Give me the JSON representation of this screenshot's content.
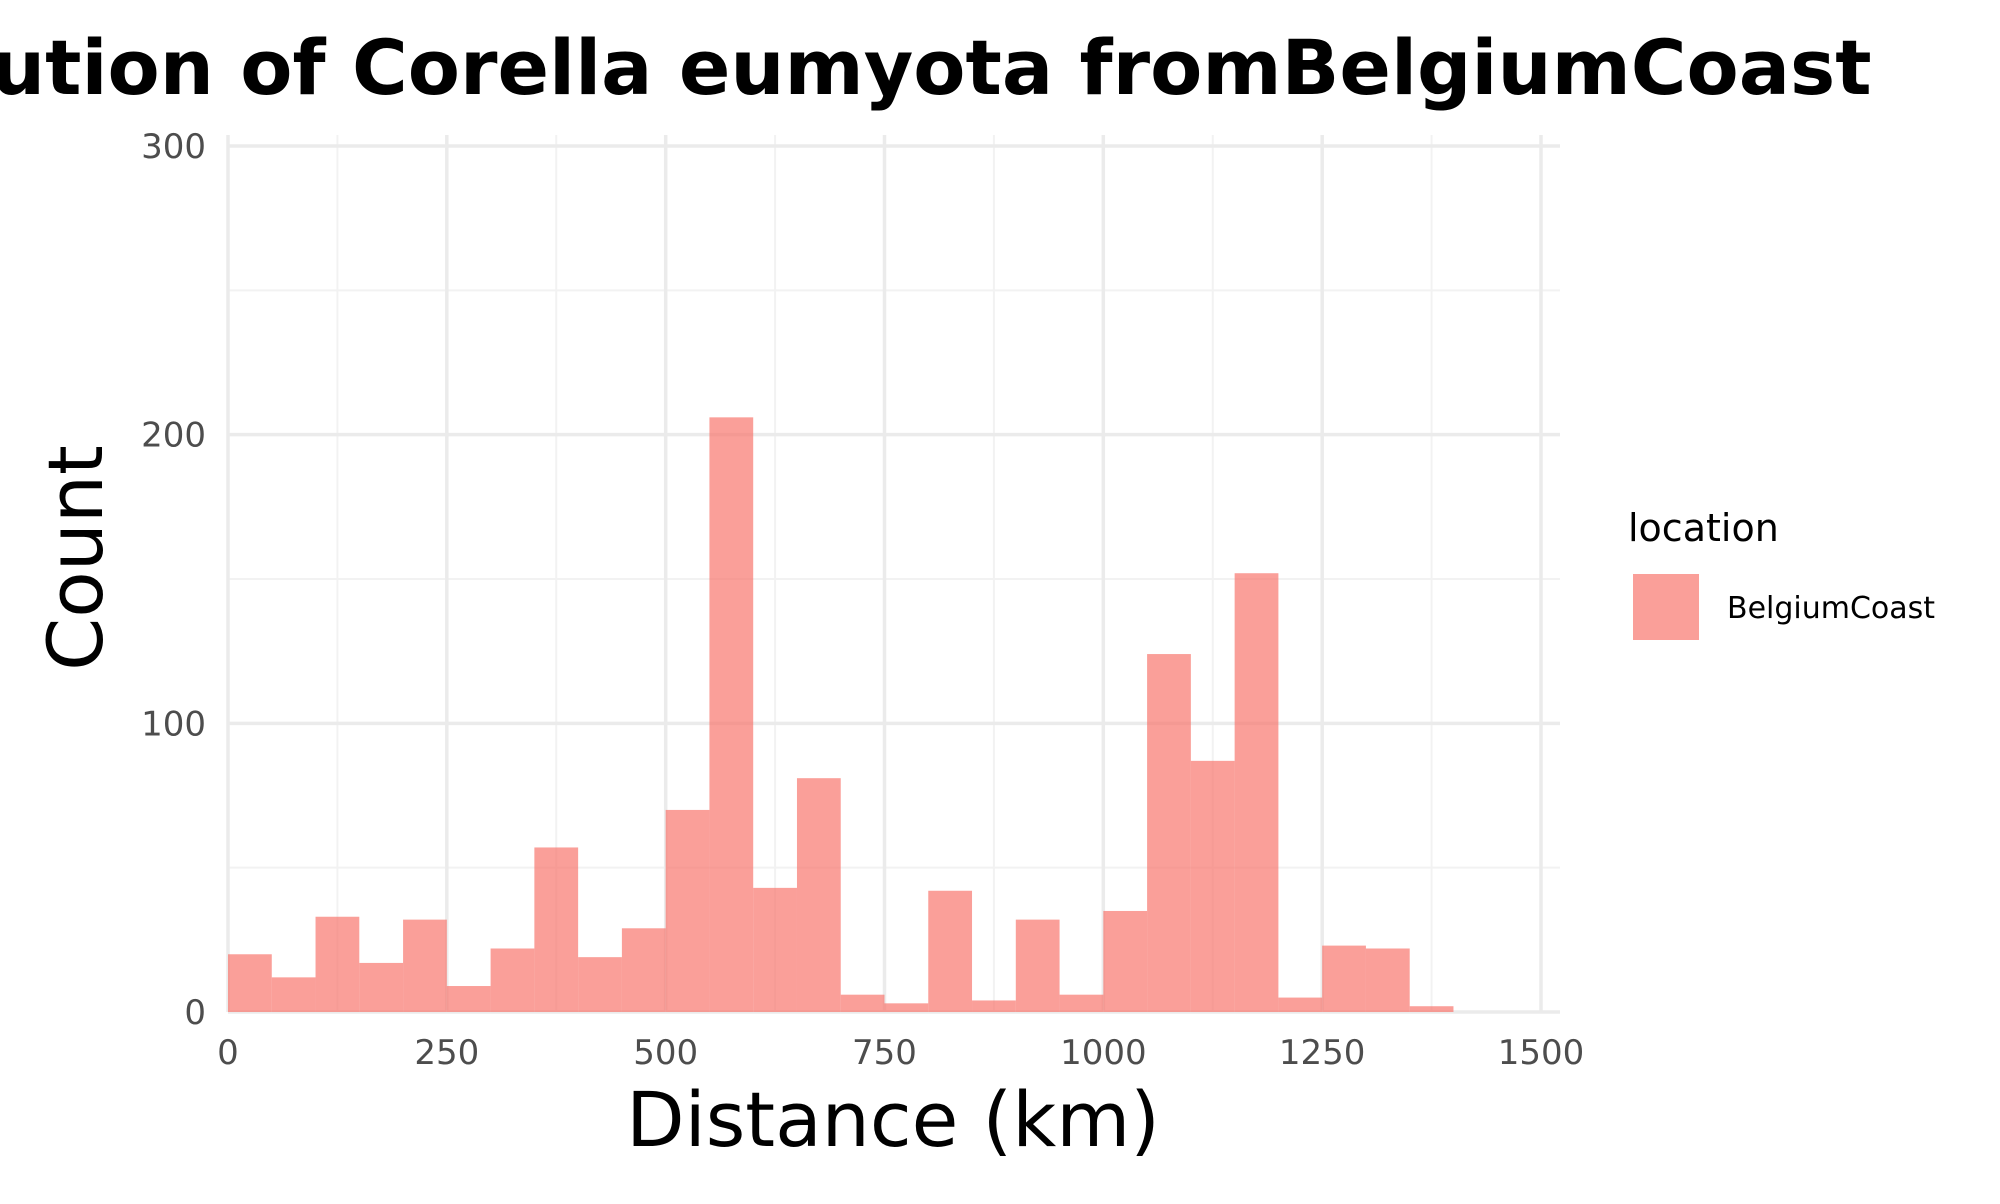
{
  "chart_data": {
    "type": "bar",
    "title": "Distribution of Corella eumyota fromBelgiumCoast",
    "xlabel": "Distance (km)",
    "ylabel": "Count",
    "xlim": [
      0,
      1500
    ],
    "ylim": [
      0,
      300
    ],
    "x_ticks": [
      "0",
      "250",
      "500",
      "750",
      "1000",
      "1250",
      "1500"
    ],
    "x_tick_values": [
      0,
      250,
      500,
      750,
      1000,
      1250,
      1500
    ],
    "y_ticks": [
      "0",
      "100",
      "200",
      "300"
    ],
    "y_tick_values": [
      0,
      100,
      200,
      300
    ],
    "y_minor_values": [
      50,
      150,
      250
    ],
    "x_minor_values": [
      125,
      375,
      625,
      875,
      1125,
      1375
    ],
    "grid": true,
    "legend": {
      "title": "location",
      "position": "right",
      "entries": [
        {
          "label": "BelgiumCoast",
          "color": "#F8766D"
        }
      ]
    },
    "bin_width": 50,
    "series": [
      {
        "name": "BelgiumCoast",
        "color": "#F8766D",
        "bins": [
          {
            "x0": 0,
            "x1": 50,
            "count": 20
          },
          {
            "x0": 50,
            "x1": 100,
            "count": 12
          },
          {
            "x0": 100,
            "x1": 150,
            "count": 33
          },
          {
            "x0": 150,
            "x1": 200,
            "count": 17
          },
          {
            "x0": 200,
            "x1": 250,
            "count": 32
          },
          {
            "x0": 250,
            "x1": 300,
            "count": 9
          },
          {
            "x0": 300,
            "x1": 350,
            "count": 22
          },
          {
            "x0": 350,
            "x1": 400,
            "count": 57
          },
          {
            "x0": 400,
            "x1": 450,
            "count": 19
          },
          {
            "x0": 450,
            "x1": 500,
            "count": 29
          },
          {
            "x0": 500,
            "x1": 550,
            "count": 70
          },
          {
            "x0": 550,
            "x1": 600,
            "count": 206
          },
          {
            "x0": 600,
            "x1": 650,
            "count": 43
          },
          {
            "x0": 650,
            "x1": 700,
            "count": 81
          },
          {
            "x0": 700,
            "x1": 750,
            "count": 6
          },
          {
            "x0": 750,
            "x1": 800,
            "count": 3
          },
          {
            "x0": 800,
            "x1": 850,
            "count": 42
          },
          {
            "x0": 850,
            "x1": 900,
            "count": 4
          },
          {
            "x0": 900,
            "x1": 950,
            "count": 32
          },
          {
            "x0": 950,
            "x1": 1000,
            "count": 6
          },
          {
            "x0": 1000,
            "x1": 1050,
            "count": 35
          },
          {
            "x0": 1050,
            "x1": 1100,
            "count": 124
          },
          {
            "x0": 1100,
            "x1": 1150,
            "count": 87
          },
          {
            "x0": 1150,
            "x1": 1200,
            "count": 152
          },
          {
            "x0": 1200,
            "x1": 1250,
            "count": 5
          },
          {
            "x0": 1250,
            "x1": 1300,
            "count": 23
          },
          {
            "x0": 1300,
            "x1": 1350,
            "count": 22
          },
          {
            "x0": 1350,
            "x1": 1400,
            "count": 2
          }
        ]
      }
    ]
  }
}
